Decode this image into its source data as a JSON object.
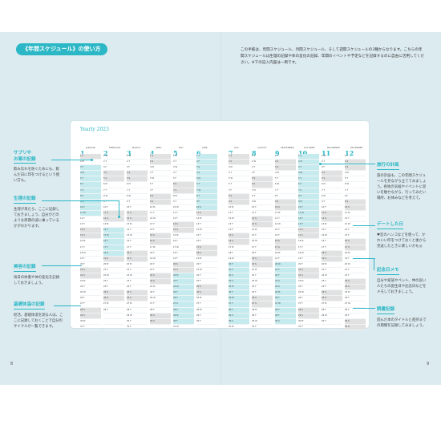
{
  "heading": "《年間スケジュール》の使い方",
  "intro": "この手帳は、年間スケジュール、月間スケジュール、そして週間スケジュールの3種からなります。こちらの年間スケジュールは生理の記録や体の変化の記録、年間のイベントや予定などを記録するのに自由に活用してください。※下の記入内容は一例です。",
  "calendar": {
    "label": "Yearly 2023",
    "months": [
      {
        "num": "1",
        "name": "JANUARY"
      },
      {
        "num": "2",
        "name": "FEBRUARY"
      },
      {
        "num": "3",
        "name": "MARCH"
      },
      {
        "num": "4",
        "name": "APRIL"
      },
      {
        "num": "5",
        "name": "MAY"
      },
      {
        "num": "6",
        "name": "JUNE"
      },
      {
        "num": "7",
        "name": "JULY"
      },
      {
        "num": "8",
        "name": "AUGUST"
      },
      {
        "num": "9",
        "name": "SEPTEMBER"
      },
      {
        "num": "10",
        "name": "OCTOBER"
      },
      {
        "num": "11",
        "name": "NOVEMBER"
      },
      {
        "num": "12",
        "name": "DECEMBER"
      }
    ]
  },
  "left_notes": [
    {
      "title": "サプリや\nお薬の記録",
      "body": "飲み忘れを防ぐためにも、飲んだ日に印をつけるという使い方も。"
    },
    {
      "title": "生理の記録",
      "body": "生理が来たら、ここに記録しておきましょう。自分がどのような周期の波に乗っているかがわかります。"
    },
    {
      "title": "美容の記録",
      "body": "毎日の体重や体の変化を記録しておきましょう。"
    },
    {
      "title": "基礎体温の記録",
      "body": "妊活、基礎体温を測る人は、ここに記録しておくことで自分のサイクルが一覧できます。"
    }
  ],
  "right_notes": [
    {
      "title": "旅行の計画",
      "body": "旅の計画も、この年間スケジュールを見ながら立ててみましょう。各地の気候やイベントに思いを馳せながら、行ってみたい場所、お休みなどを考えて。"
    },
    {
      "title": "デートした日",
      "body": "♥恋のハンコなどを使って、かわいい印をつけておくと後から見返したときに楽しいかも◎"
    },
    {
      "title": "記念日メモ",
      "body": "自分や家族やペット、仲の良い人たちの誕生日や記念日などをメモしておきましょう。"
    },
    {
      "title": "読書記録",
      "body": "読んだ本のタイトルと進捗までの期間を記録してみましょう。"
    }
  ],
  "page_left": "8",
  "page_right": "9",
  "colors": {
    "accent": "#2bb7c5",
    "weekend": "#e1e1e1",
    "highlight": "#c5ebef"
  }
}
